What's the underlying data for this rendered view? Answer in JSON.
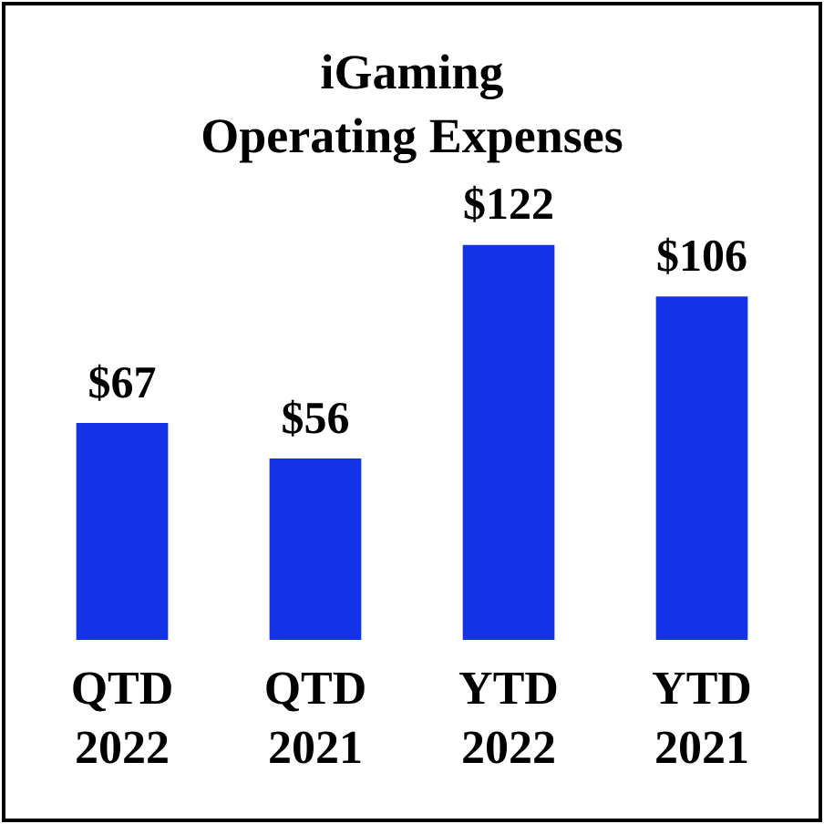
{
  "chart_data": {
    "type": "bar",
    "title": "iGaming Operating Expenses",
    "categories": [
      "QTD 2022",
      "QTD 2021",
      "YTD 2022",
      "YTD 2021"
    ],
    "values": [
      67,
      56,
      122,
      106
    ],
    "value_labels": [
      "$67",
      "$56",
      "$122",
      "$106"
    ],
    "color": "#1432e6",
    "grid": false,
    "legend": false
  }
}
